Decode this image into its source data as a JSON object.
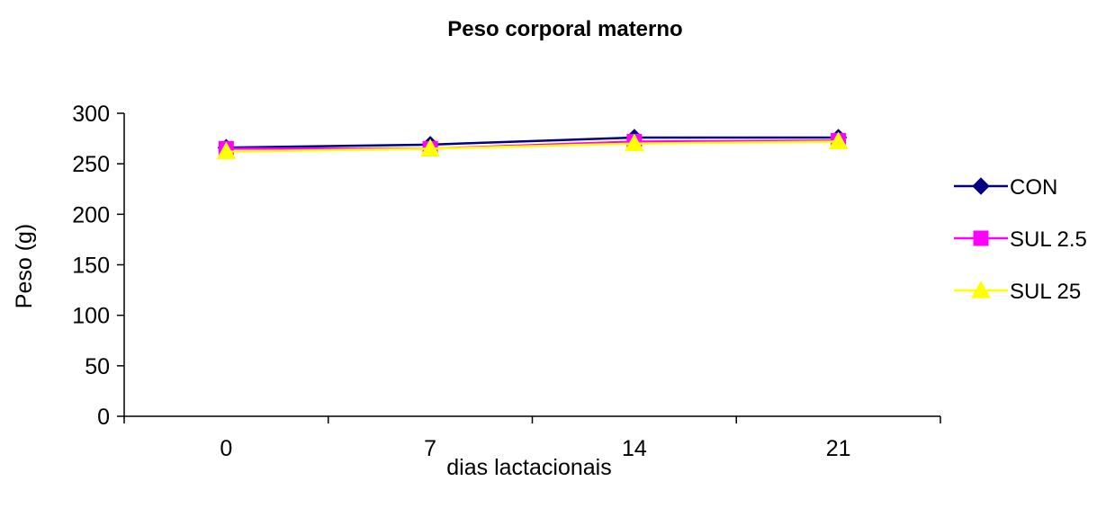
{
  "chart_data": {
    "type": "line",
    "title": "Peso corporal materno",
    "xlabel": "dias lactacionais",
    "ylabel": "Peso (g)",
    "categories": [
      "0",
      "7",
      "14",
      "21"
    ],
    "ylim": [
      0,
      300
    ],
    "yticks": [
      "0",
      "50",
      "100",
      "150",
      "200",
      "250",
      "300"
    ],
    "grid": false,
    "legend_position": "right",
    "series": [
      {
        "name": "CON",
        "values": [
          266,
          269,
          276,
          276
        ],
        "color": "#000080",
        "marker": "diamond"
      },
      {
        "name": "SUL 2.5",
        "values": [
          265,
          265,
          272,
          273
        ],
        "color": "#ff00ff",
        "marker": "square"
      },
      {
        "name": "SUL 25",
        "values": [
          262,
          265,
          270,
          272
        ],
        "color": "#ffff00",
        "marker": "triangle"
      }
    ]
  }
}
